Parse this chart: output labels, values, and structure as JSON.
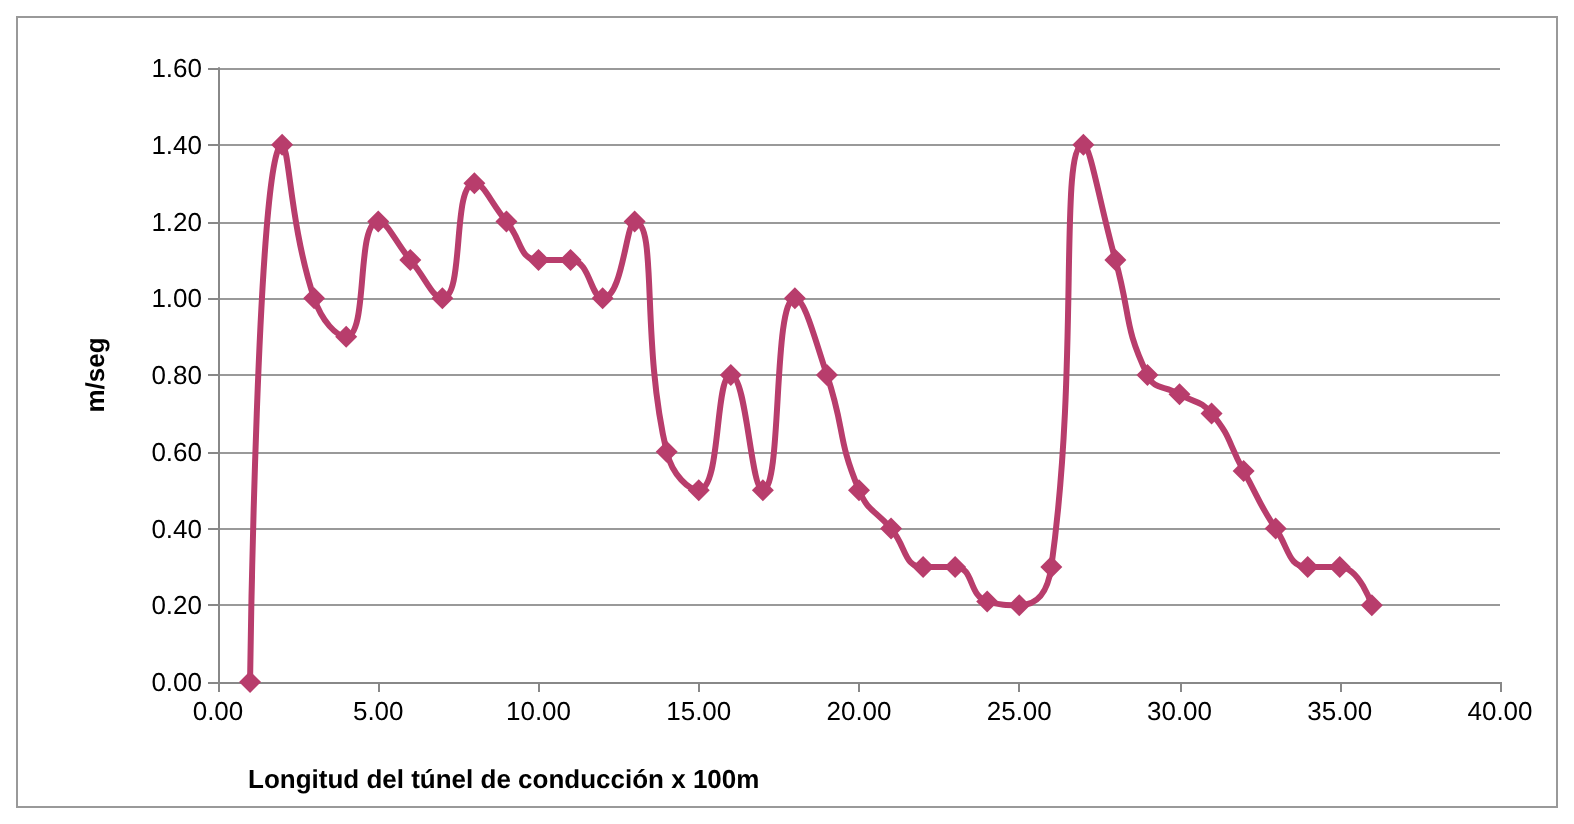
{
  "chart_data": {
    "type": "line",
    "xlabel": "Longitud del túnel de conducción x 100m",
    "ylabel": "m/seg",
    "x": [
      1,
      2,
      3,
      4,
      5,
      6,
      7,
      8,
      9,
      10,
      11,
      12,
      13,
      14,
      15,
      16,
      17,
      18,
      19,
      20,
      21,
      22,
      23,
      24,
      25,
      26,
      27,
      28,
      29,
      30,
      31,
      32,
      33,
      34,
      35,
      36
    ],
    "series": [
      {
        "color": "#b83d6c",
        "values": [
          0,
          1.4,
          1.0,
          0.9,
          1.2,
          1.1,
          1.0,
          1.3,
          1.2,
          1.1,
          1.1,
          1.0,
          1.2,
          0.6,
          0.5,
          0.8,
          0.5,
          1.0,
          0.8,
          0.5,
          0.4,
          0.3,
          0.3,
          0.21,
          0.2,
          0.3,
          1.4,
          1.1,
          0.8,
          0.75,
          0.7,
          0.55,
          0.4,
          0.3,
          0.3,
          0.2
        ]
      }
    ],
    "xlim": [
      0,
      40
    ],
    "xticks": [
      {
        "value": 0,
        "label": "0.00"
      },
      {
        "value": 5,
        "label": "5.00"
      },
      {
        "value": 10,
        "label": "10.00"
      },
      {
        "value": 15,
        "label": "15.00"
      },
      {
        "value": 20,
        "label": "20.00"
      },
      {
        "value": 25,
        "label": "25.00"
      },
      {
        "value": 30,
        "label": "30.00"
      },
      {
        "value": 35,
        "label": "35.00"
      },
      {
        "value": 40,
        "label": "40.00"
      }
    ],
    "ylim": [
      0,
      1.6
    ],
    "yticks": [
      {
        "value": 0,
        "label": "0.00"
      },
      {
        "value": 0.2,
        "label": "0.20"
      },
      {
        "value": 0.4,
        "label": "0.40"
      },
      {
        "value": 0.6,
        "label": "0.60"
      },
      {
        "value": 0.8,
        "label": "0.80"
      },
      {
        "value": 1.0,
        "label": "1.00"
      },
      {
        "value": 1.2,
        "label": "1.20"
      },
      {
        "value": 1.4,
        "label": "1.40"
      },
      {
        "value": 1.6,
        "label": "1.60"
      }
    ],
    "grid": "y",
    "marker": "diamond",
    "line_style": "solid"
  }
}
